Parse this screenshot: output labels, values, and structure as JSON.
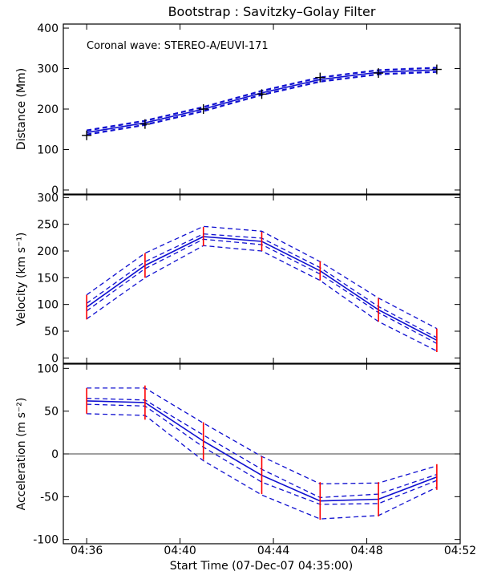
{
  "chart_data": {
    "title": "Bootstrap : Savitzky–Golay Filter",
    "xlabel": "Start Time (07-Dec-07 04:35:00)",
    "x_tick_labels": [
      "04:36",
      "04:40",
      "04:44",
      "04:48",
      "04:52"
    ],
    "x_ticks_min": [
      36,
      40,
      44,
      48,
      52
    ],
    "xlim_min": [
      35,
      52
    ],
    "x_min": [
      36.0,
      38.5,
      41.0,
      43.5,
      46.0,
      48.5,
      51.0
    ],
    "colors": {
      "fit": "#1010d0",
      "bands": "#1010d0",
      "errorbar": "#ff0000",
      "data": "#000000",
      "zero": "#000000"
    },
    "panels": [
      {
        "type": "line",
        "name": "distance",
        "ylabel": "Distance (Mm)",
        "ylim": [
          -10,
          410
        ],
        "y_ticks": [
          0,
          100,
          200,
          300,
          400
        ],
        "annotation": "Coronal wave: STEREO-A/EUVI-171",
        "observed": [
          135,
          163,
          200,
          237,
          278,
          289,
          298
        ],
        "fit": [
          142,
          166,
          200,
          240,
          273,
          291,
          297
        ],
        "band_offsets": [
          6,
          4
        ],
        "error_bars": false,
        "zero_line": false
      },
      {
        "type": "line",
        "name": "velocity",
        "ylabel": "Velocity (km s⁻¹)",
        "ylim": [
          -10,
          305
        ],
        "y_ticks": [
          0,
          50,
          100,
          150,
          200,
          250,
          300
        ],
        "fit": [
          95,
          173,
          227,
          218,
          163,
          90,
          33
        ],
        "inner_bands": [
          [
            88,
            167,
            222,
            212,
            157,
            85,
            27
          ],
          [
            102,
            180,
            232,
            224,
            169,
            96,
            38
          ]
        ],
        "outer_bands": [
          [
            73,
            150,
            210,
            200,
            145,
            68,
            13
          ],
          [
            118,
            196,
            246,
            237,
            180,
            112,
            55
          ]
        ],
        "error_halfwidth": [
          23,
          23,
          18,
          18,
          18,
          22,
          22
        ],
        "zero_line": false
      },
      {
        "type": "line",
        "name": "acceleration",
        "ylabel": "Acceleration (m s⁻²)",
        "ylim": [
          -105,
          105
        ],
        "y_ticks": [
          -100,
          -50,
          0,
          50,
          100
        ],
        "fit": [
          62,
          60,
          15,
          -25,
          -55,
          -53,
          -27
        ],
        "inner_bands": [
          [
            58,
            56,
            8,
            -33,
            -59,
            -58,
            -31
          ],
          [
            65,
            63,
            22,
            -18,
            -51,
            -47,
            -24
          ]
        ],
        "outer_bands": [
          [
            47,
            45,
            -8,
            -48,
            -76,
            -72,
            -39
          ],
          [
            77,
            77,
            36,
            -3,
            -35,
            -34,
            -14
          ]
        ],
        "error_halfwidth": [
          15,
          20,
          22,
          22,
          22,
          20,
          15
        ],
        "zero_line": true
      }
    ]
  }
}
